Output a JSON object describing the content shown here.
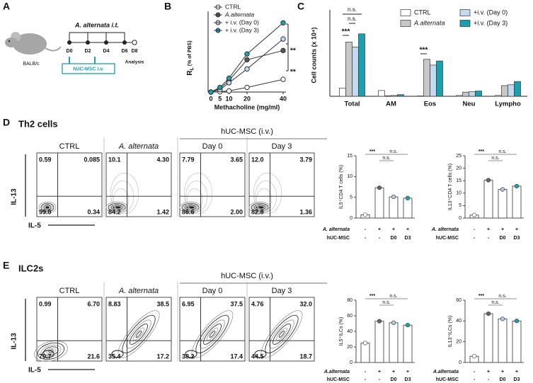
{
  "labels": [
    "A",
    "B",
    "C",
    "D",
    "E"
  ],
  "timeline": {
    "treatment": "A. alternata i.t.",
    "strain": "BALB/c",
    "days": [
      "D0",
      "D2",
      "D4",
      "D6",
      "D8"
    ],
    "injection": "hUC-MSC i.v.",
    "endpoint": "Analysis"
  },
  "chart_data": [
    {
      "type": "line",
      "xlabel": "Methacholine (mg/ml)",
      "ylabel": {
        "main": "R",
        "sub": "L",
        "rest": " (% of PBS)"
      },
      "x": [
        0,
        5,
        10,
        20,
        40
      ],
      "xlim": [
        0,
        40
      ],
      "xticks": [
        0,
        5,
        10,
        20,
        40
      ],
      "ylim": [
        100,
        800
      ],
      "series": [
        {
          "name": "CTRL",
          "color": "#ffffff",
          "values": [
            100,
            102,
            110,
            140,
            210
          ]
        },
        {
          "name": "A.alternata",
          "color": "#595959",
          "values": [
            100,
            130,
            200,
            380,
            460
          ]
        },
        {
          "name": "+ i.v. (Day 0)",
          "color": "#c5d9f1",
          "values": [
            100,
            120,
            180,
            300,
            560
          ]
        },
        {
          "name": "+ i.v. (Day 3)",
          "color": "#1aa0b0",
          "values": [
            100,
            140,
            220,
            430,
            700
          ]
        }
      ],
      "annotations": [
        "**",
        "**"
      ]
    },
    {
      "type": "bar",
      "ylabel": "Cell counts (x 10⁴)",
      "categories": [
        "Total",
        "AM",
        "Eos",
        "Neu",
        "Lympho"
      ],
      "ylim": [
        0,
        50
      ],
      "series": [
        {
          "name": "CTRL",
          "color": "#ffffff",
          "values": [
            5,
            3.5,
            0.2,
            0.5,
            0.5
          ]
        },
        {
          "name": "A.alternata",
          "color": "#c8c8c8",
          "values": [
            33,
            0.3,
            22.5,
            2.5,
            6.5
          ]
        },
        {
          "name": "+i.v. (Day 0)",
          "color": "#c5d9f1",
          "values": [
            30,
            0.5,
            19,
            2.8,
            7
          ]
        },
        {
          "name": "+i.v. (Day 3)",
          "color": "#1aa0b0",
          "values": [
            38,
            1,
            21.5,
            3.2,
            9
          ]
        }
      ],
      "annotations": [
        "***",
        "n.s.",
        "n.s.",
        "***"
      ]
    },
    {
      "type": "bar",
      "ylabel": "IL5⁺CD4 T cells (%)",
      "values": [
        0.8,
        7.3,
        5.1,
        4.8
      ],
      "colors": [
        "#ffffff",
        "#666666",
        "#b4c7e7",
        "#1aa0b0"
      ],
      "ylim": [
        0,
        15
      ],
      "yticks": [
        0,
        5,
        10,
        15
      ],
      "rows": [
        {
          "name": "A. alternata",
          "values": [
            "-",
            "+",
            "+",
            "+"
          ]
        },
        {
          "name": "hUC-MSC",
          "values": [
            "-",
            "-",
            "D0",
            "D3"
          ]
        }
      ],
      "annotations": [
        "***",
        "n.s.",
        "n.s."
      ]
    },
    {
      "type": "bar",
      "ylabel": "IL13⁺CD4 T cells (%)",
      "values": [
        1.2,
        15.2,
        11.5,
        12.8
      ],
      "colors": [
        "#ffffff",
        "#666666",
        "#b4c7e7",
        "#1aa0b0"
      ],
      "ylim": [
        0,
        25
      ],
      "yticks": [
        0,
        5,
        10,
        15,
        20,
        25
      ],
      "rows": [
        {
          "name": "A. alternata",
          "values": [
            "-",
            "+",
            "+",
            "+"
          ]
        },
        {
          "name": "hUC-MSC",
          "values": [
            "-",
            "-",
            "D0",
            "D3"
          ]
        }
      ],
      "annotations": [
        "***",
        "n.s.",
        "n.s."
      ]
    },
    {
      "type": "bar",
      "ylabel": "IL5⁺ILCs (%)",
      "values": [
        25,
        53,
        51,
        48
      ],
      "colors": [
        "#ffffff",
        "#666666",
        "#b4c7e7",
        "#1aa0b0"
      ],
      "ylim": [
        0,
        80
      ],
      "yticks": [
        0,
        20,
        40,
        60,
        80
      ],
      "rows": [
        {
          "name": "A.alternata",
          "values": [
            "-",
            "+",
            "+",
            "+"
          ]
        },
        {
          "name": "hUC-MSC",
          "values": [
            "-",
            "-",
            "D0",
            "D3"
          ]
        }
      ],
      "annotations": [
        "***",
        "n.s.",
        "n.s."
      ]
    },
    {
      "type": "bar",
      "ylabel": "IL13⁺ILCs (%)",
      "values": [
        6,
        47,
        42,
        40
      ],
      "colors": [
        "#ffffff",
        "#666666",
        "#b4c7e7",
        "#1aa0b0"
      ],
      "ylim": [
        0,
        60
      ],
      "yticks": [
        0,
        20,
        40,
        60
      ],
      "rows": [
        {
          "name": "A.alternata",
          "values": [
            "-",
            "+",
            "+",
            "+"
          ]
        },
        {
          "name": "hUC-MSC",
          "values": [
            "-",
            "-",
            "D0",
            "D3"
          ]
        }
      ],
      "annotations": [
        "***",
        "n.s.",
        "n.s."
      ]
    }
  ],
  "flow": [
    {
      "title": "Th2 cells",
      "group": "hUC-MSC (i.v.)",
      "y_axis": "IL-13",
      "x_axis": "IL-5",
      "plots": [
        {
          "name": "CTRL",
          "quadrants": [
            "0.59",
            "0.085",
            "99.0",
            "0.34"
          ]
        },
        {
          "name": "A. alternata",
          "quadrants": [
            "10.1",
            "4.30",
            "84.2",
            "1.42"
          ]
        },
        {
          "name": "Day 0",
          "quadrants": [
            "7.79",
            "3.65",
            "86.6",
            "2.00"
          ]
        },
        {
          "name": "Day 3",
          "quadrants": [
            "12.0",
            "3.79",
            "82.8",
            "1.36"
          ]
        }
      ]
    },
    {
      "title": "ILC2s",
      "group": "hUC-MSC (i.v.)",
      "y_axis": "IL-13",
      "x_axis": "IL-5",
      "plots": [
        {
          "name": "CTRL",
          "quadrants": [
            "0.99",
            "6.70",
            "70.7",
            "21.6"
          ]
        },
        {
          "name": "A. alternata",
          "quadrants": [
            "8.83",
            "38.5",
            "35.4",
            "17.2"
          ]
        },
        {
          "name": "Day 0",
          "quadrants": [
            "6.95",
            "37.5",
            "38.2",
            "17.4"
          ]
        },
        {
          "name": "Day 3",
          "quadrants": [
            "4.76",
            "32.0",
            "44.5",
            "18.7"
          ]
        }
      ]
    }
  ]
}
